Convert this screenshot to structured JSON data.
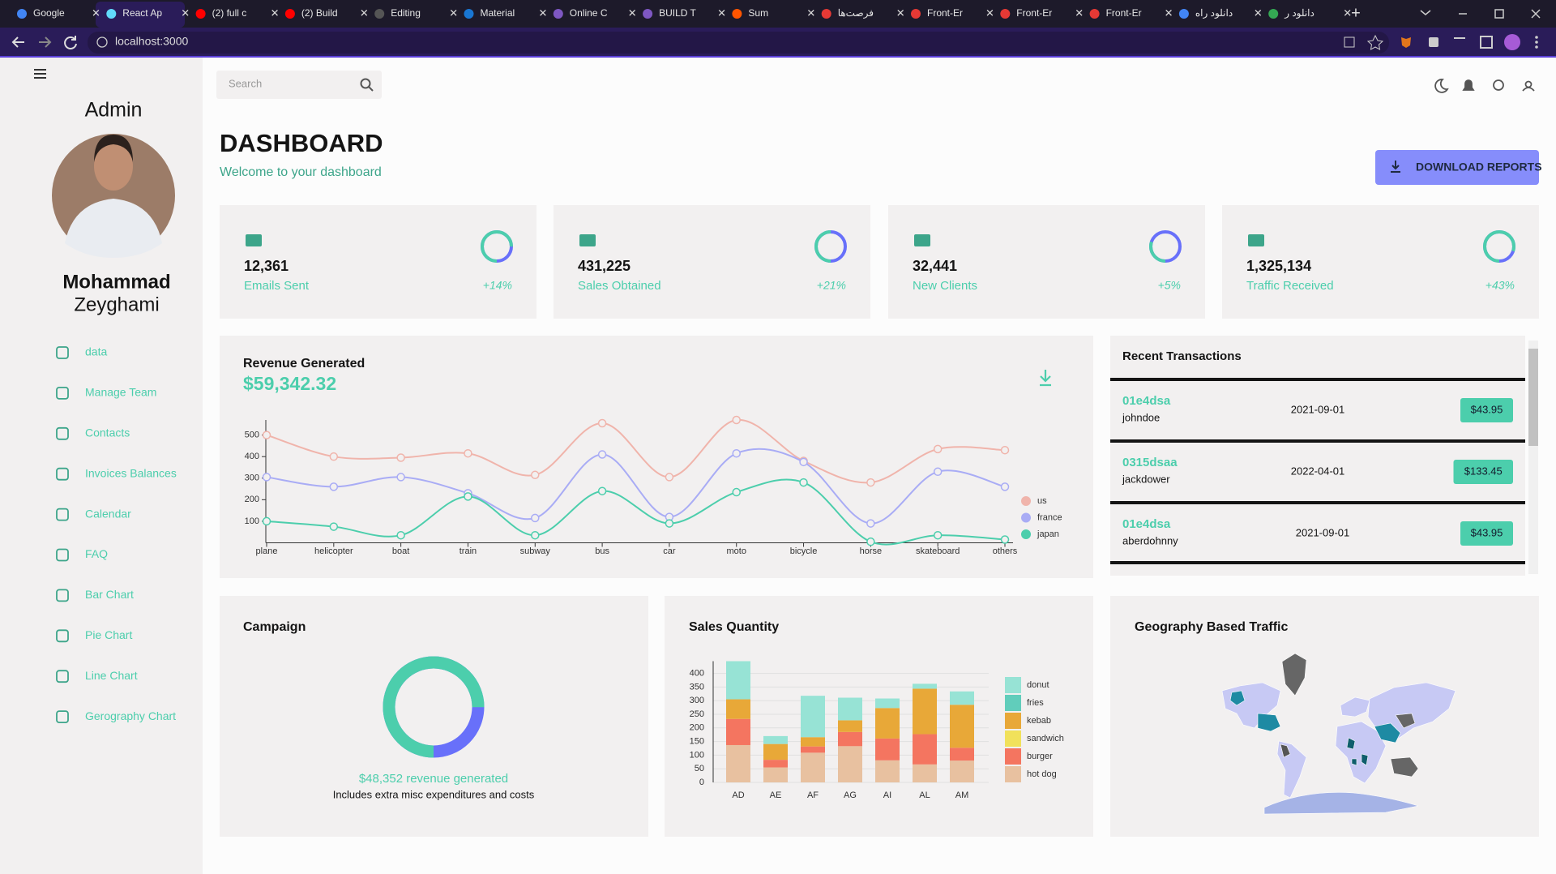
{
  "browser": {
    "tabs": [
      "Google",
      "React Ap",
      "(2) full c",
      "(2) Build",
      "Editing",
      "Material",
      "Online C",
      "BUILD T",
      "Sum",
      "فرصت‌ها",
      "Front-Er",
      "Front-Er",
      "Front-Er",
      "دانلود راه",
      "دانلود ر"
    ],
    "url": "localhost:3000"
  },
  "sidebar": {
    "role": "Admin",
    "first_name": "Mohammad",
    "last_name": "Zeyghami",
    "menu": [
      "data",
      "Manage Team",
      "Contacts",
      "Invoices Balances",
      "Calendar",
      "FAQ",
      "Bar Chart",
      "Pie Chart",
      "Line Chart",
      "Gerography Chart"
    ]
  },
  "topbar": {
    "search_placeholder": "Search"
  },
  "header": {
    "title": "DASHBOARD",
    "subtitle": "Welcome to your dashboard",
    "button": "DOWNLOAD REPORTS"
  },
  "stats": [
    {
      "value": "12,361",
      "label": "Emails Sent",
      "increase": "+14%",
      "progress": 0.75
    },
    {
      "value": "431,225",
      "label": "Sales Obtained",
      "increase": "+21%",
      "progress": 0.5
    },
    {
      "value": "32,441",
      "label": "New Clients",
      "increase": "+5%",
      "progress": 0.3
    },
    {
      "value": "1,325,134",
      "label": "Traffic Received",
      "increase": "+43%",
      "progress": 0.8
    }
  ],
  "revenue_chart": {
    "type": "line",
    "title": "Revenue Generated",
    "total": "$59,342.32",
    "categories": [
      "plane",
      "helicopter",
      "boat",
      "train",
      "subway",
      "bus",
      "car",
      "moto",
      "bicycle",
      "horse",
      "skateboard",
      "others"
    ],
    "series": [
      {
        "name": "us",
        "color": "#f0b4ab",
        "values": [
          500,
          400,
          395,
          415,
          315,
          555,
          305,
          570,
          380,
          280,
          435,
          430
        ]
      },
      {
        "name": "france",
        "color": "#a9acf5",
        "values": [
          305,
          260,
          305,
          230,
          115,
          410,
          120,
          415,
          375,
          90,
          330,
          260
        ]
      },
      {
        "name": "japan",
        "color": "#4cceac",
        "values": [
          100,
          75,
          35,
          215,
          35,
          240,
          90,
          235,
          280,
          5,
          35,
          15
        ]
      }
    ],
    "ylim": [
      0,
      570
    ],
    "yticks": [
      100,
      200,
      300,
      400,
      500
    ]
  },
  "transactions": {
    "title": "Recent Transactions",
    "rows": [
      {
        "txId": "01e4dsa",
        "user": "johndoe",
        "date": "2021-09-01",
        "cost": "$43.95"
      },
      {
        "txId": "0315dsaa",
        "user": "jackdower",
        "date": "2022-04-01",
        "cost": "$133.45"
      },
      {
        "txId": "01e4dsa",
        "user": "aberdohnny",
        "date": "2021-09-01",
        "cost": "$43.95"
      }
    ]
  },
  "campaign": {
    "title": "Campaign",
    "progress": 0.75,
    "caption": "$48,352 revenue generated",
    "note": "Includes extra misc expenditures and costs"
  },
  "sales_chart": {
    "type": "bar",
    "title": "Sales Quantity",
    "categories": [
      "AD",
      "AE",
      "AF",
      "AG",
      "AI",
      "AL",
      "AM"
    ],
    "series": [
      {
        "name": "hot dog",
        "color": "#e8c1a0",
        "values": [
          137,
          55,
          109,
          133,
          81,
          66,
          80
        ]
      },
      {
        "name": "burger",
        "color": "#f47560",
        "values": [
          96,
          28,
          23,
          52,
          80,
          111,
          47
        ]
      },
      {
        "name": "sandwich",
        "color": "#f1e15b",
        "values": [
          null,
          null,
          null,
          null,
          null,
          null,
          null
        ]
      },
      {
        "name": "kebab",
        "color": "#e8a838",
        "values": [
          72,
          58,
          34,
          43,
          112,
          167,
          158
        ]
      },
      {
        "name": "fries",
        "color": "#61cdbb",
        "values": [
          null,
          null,
          null,
          null,
          null,
          null,
          null
        ]
      },
      {
        "name": "donut",
        "color": "#97e3d5",
        "values": [
          140,
          29,
          152,
          83,
          35,
          18,
          49
        ]
      }
    ],
    "ylim": [
      0,
      445
    ],
    "yticks": [
      0,
      50,
      100,
      150,
      200,
      250,
      300,
      350,
      400
    ]
  },
  "geography": {
    "title": "Geography Based Traffic"
  }
}
